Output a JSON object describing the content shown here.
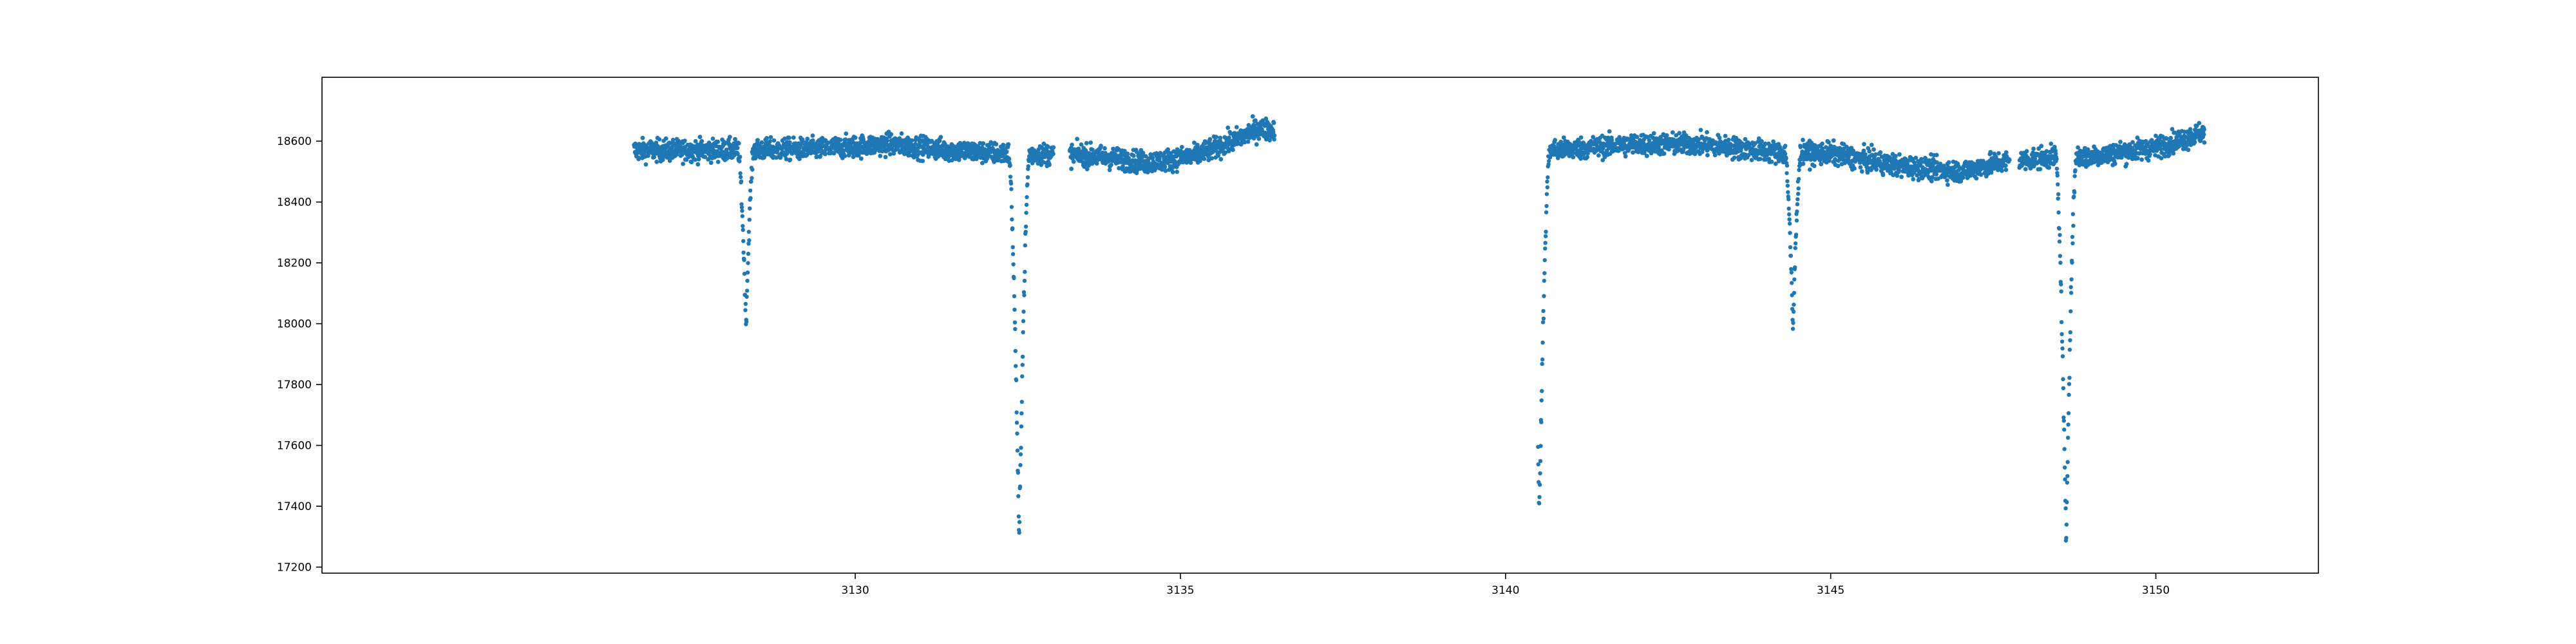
{
  "chart_data": {
    "type": "scatter",
    "title": "",
    "xlabel": "",
    "ylabel": "",
    "xlim": [
      3121.8,
      3152.5
    ],
    "ylim": [
      17180,
      18810
    ],
    "x_ticks": [
      3130,
      3135,
      3140,
      3145,
      3150
    ],
    "y_ticks": [
      17200,
      17400,
      17600,
      17800,
      18000,
      18200,
      18400,
      18600
    ],
    "x_tick_labels": [
      "3130",
      "3135",
      "3140",
      "3145",
      "3150"
    ],
    "y_tick_labels": [
      "17200",
      "17400",
      "17600",
      "17800",
      "18000",
      "18200",
      "18400",
      "18600"
    ],
    "grid": false,
    "legend": "none",
    "marker_color": "#1f77b4",
    "segments": [
      {
        "x_start": 3126.6,
        "x_end": 3136.45
      },
      {
        "x_start": 3140.5,
        "x_end": 3150.75
      }
    ],
    "baseline": [
      [
        3126.6,
        18570
      ],
      [
        3128.0,
        18570
      ],
      [
        3129.5,
        18575
      ],
      [
        3130.5,
        18590
      ],
      [
        3131.5,
        18570
      ],
      [
        3132.2,
        18560
      ],
      [
        3133.5,
        18555
      ],
      [
        3134.5,
        18530
      ],
      [
        3135.2,
        18550
      ],
      [
        3135.8,
        18600
      ],
      [
        3136.2,
        18640
      ],
      [
        3140.7,
        18570
      ],
      [
        3142.0,
        18590
      ],
      [
        3143.0,
        18590
      ],
      [
        3144.3,
        18560
      ],
      [
        3145.0,
        18560
      ],
      [
        3146.0,
        18520
      ],
      [
        3147.0,
        18500
      ],
      [
        3147.6,
        18530
      ],
      [
        3148.5,
        18550
      ],
      [
        3149.0,
        18550
      ],
      [
        3150.0,
        18580
      ],
      [
        3150.75,
        18630
      ]
    ],
    "eclipses": [
      {
        "center": 3128.32,
        "depth_min": 17990,
        "half_width": 0.12
      },
      {
        "center": 3132.52,
        "depth_min": 17275,
        "half_width": 0.16
      },
      {
        "center": 3140.52,
        "depth_min": 17370,
        "half_width": 0.16
      },
      {
        "center": 3144.42,
        "depth_min": 17975,
        "half_width": 0.12
      },
      {
        "center": 3148.62,
        "depth_min": 17270,
        "half_width": 0.16
      }
    ],
    "gaps": [
      [
        3133.05,
        3133.3
      ],
      [
        3147.75,
        3147.9
      ]
    ],
    "scatter_noise": 18
  }
}
